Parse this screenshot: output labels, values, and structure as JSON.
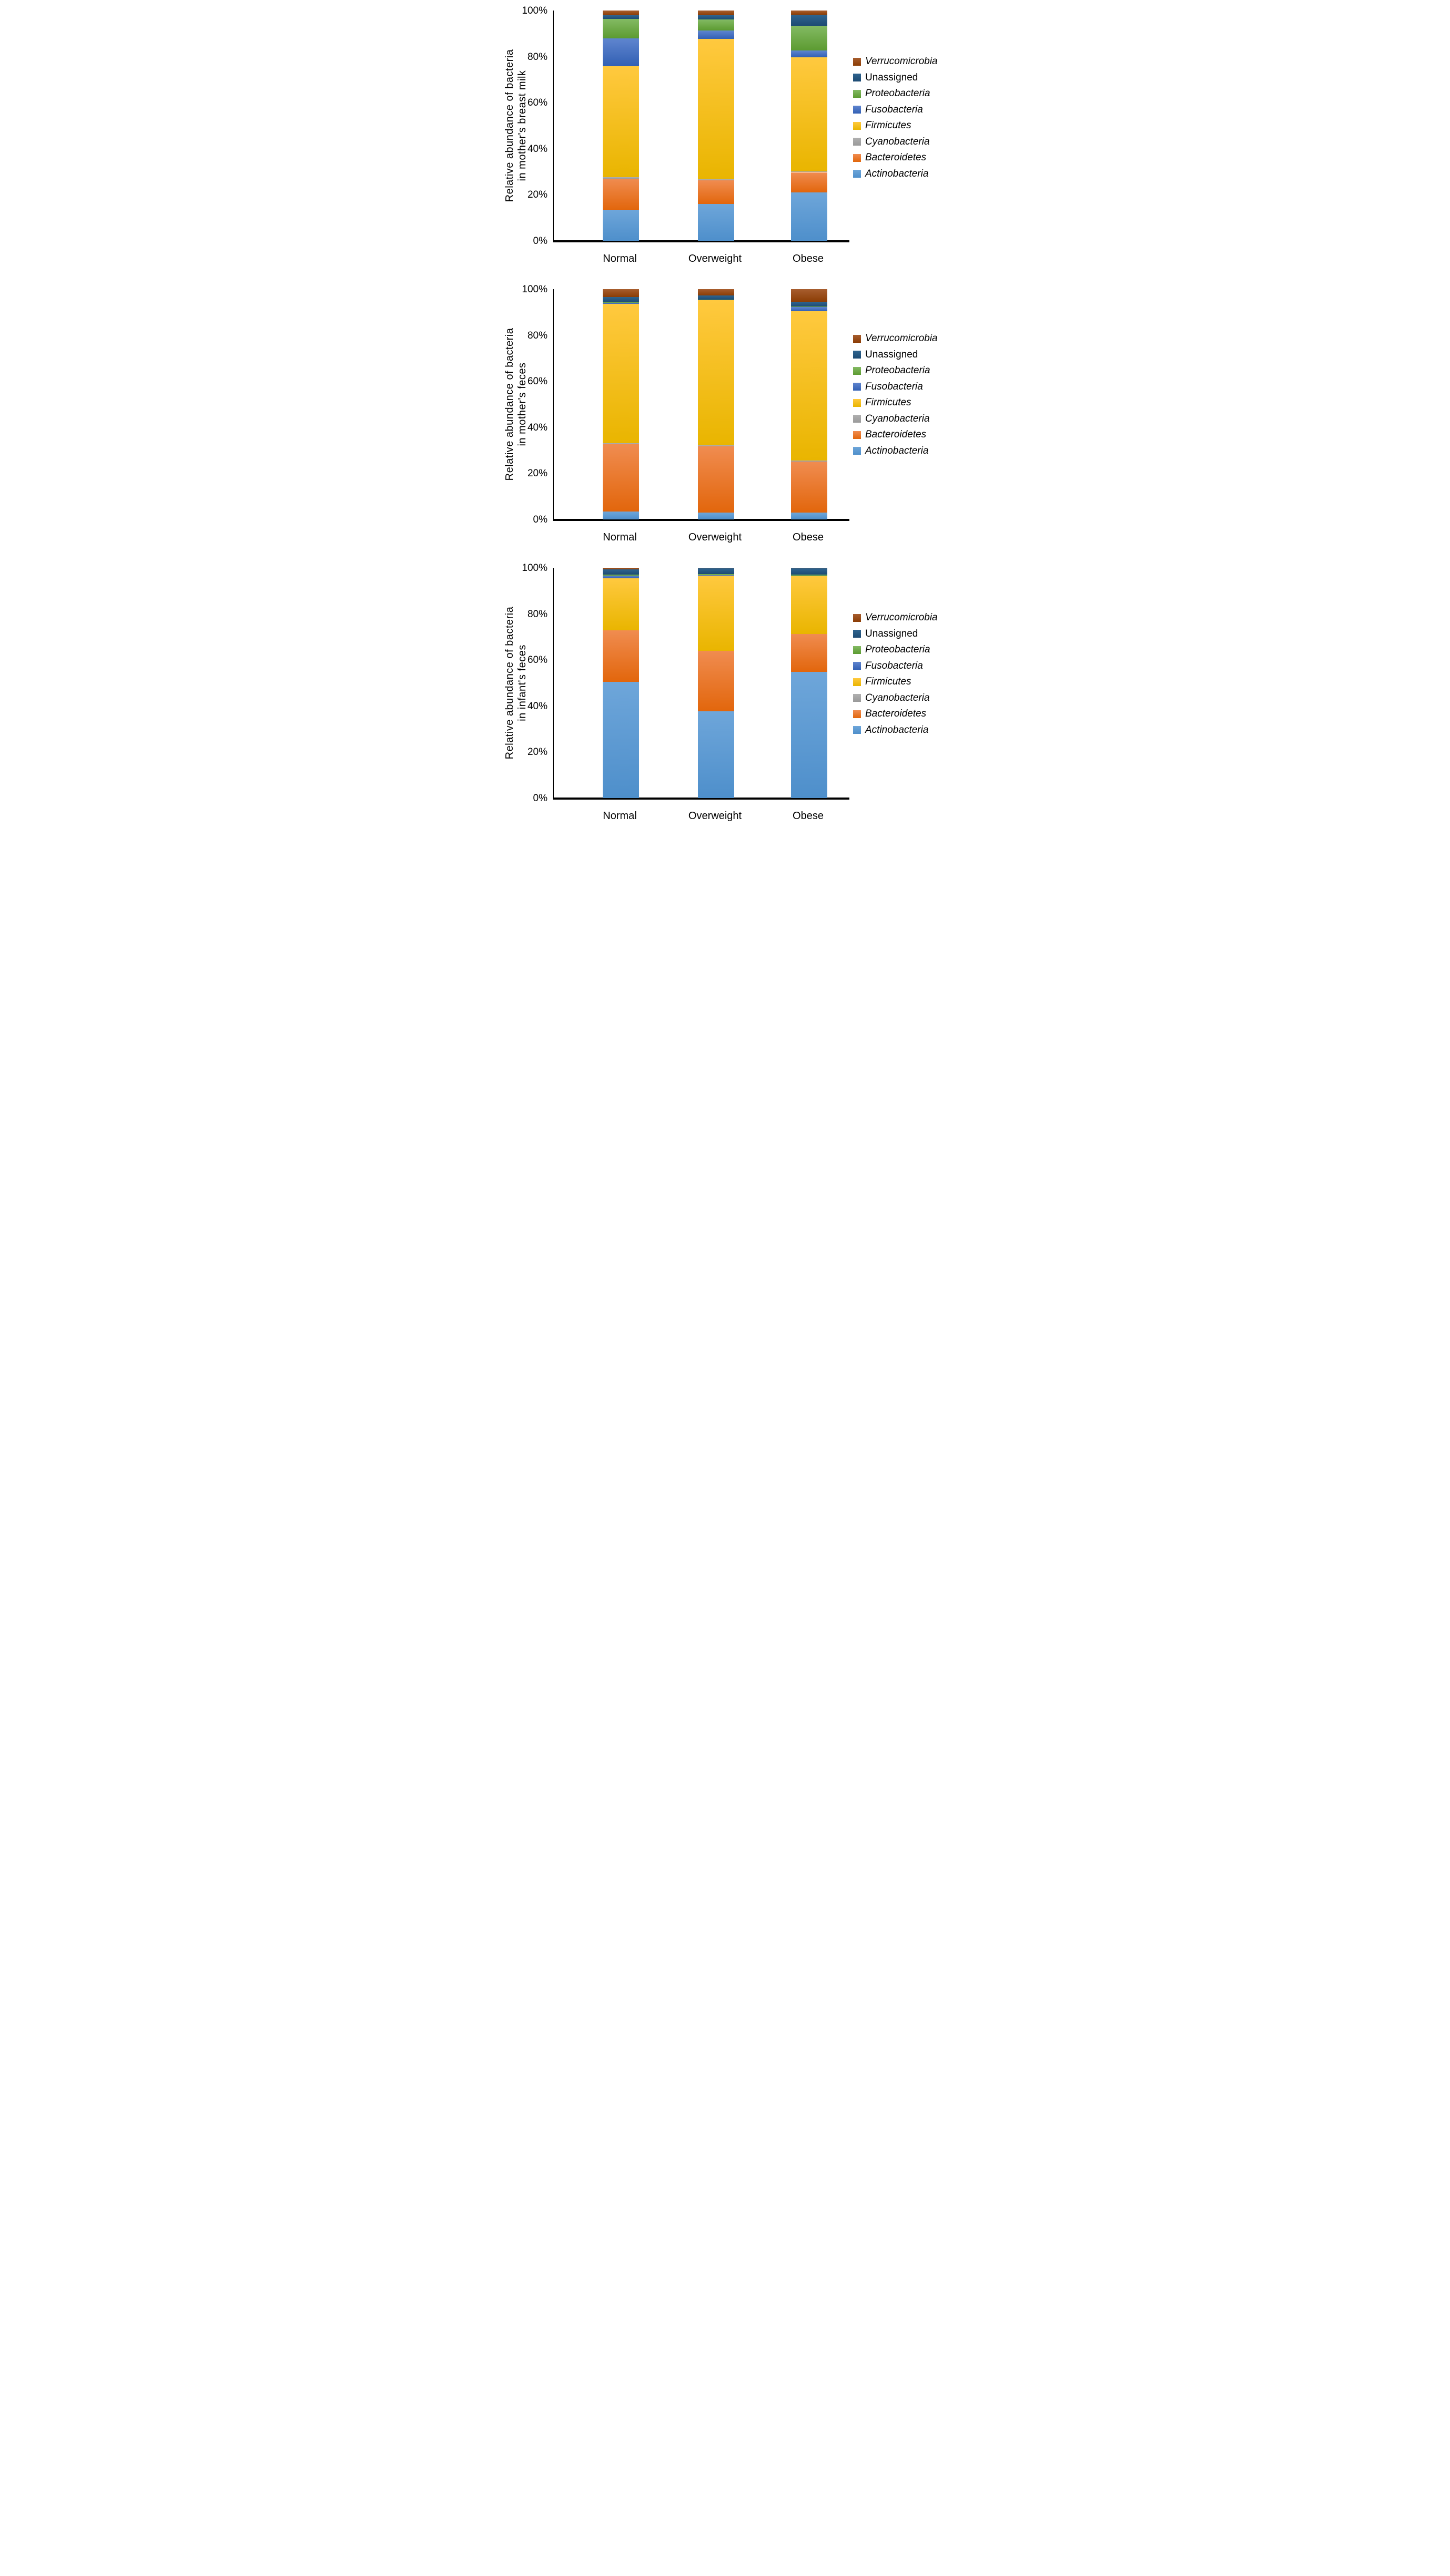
{
  "page": {
    "background": "#ffffff"
  },
  "legend": {
    "items": [
      {
        "label": "Verrucomicrobia",
        "series": "Verrucomicrobia",
        "italic": true
      },
      {
        "label": "Unassigned",
        "series": "Unassigned",
        "italic": false
      },
      {
        "label": "Proteobacteria",
        "series": "Proteobacteria",
        "italic": true
      },
      {
        "label": "Fusobacteria",
        "series": "Fusobacteria",
        "italic": true
      },
      {
        "label": "Firmicutes",
        "series": "Firmicutes",
        "italic": true
      },
      {
        "label": "Cyanobacteria",
        "series": "Cyanobacteria",
        "italic": true
      },
      {
        "label": "Bacteroidetes",
        "series": "Bacteroidetes",
        "italic": true
      },
      {
        "label": "Actinobacteria",
        "series": "Actinobacteria",
        "italic": true
      }
    ]
  },
  "series_styles": [
    {
      "name": "Actinobacteria",
      "color_top": "#6EA6DA",
      "color_bottom": "#4E8FCB"
    },
    {
      "name": "Bacteroidetes",
      "color_top": "#F08C50",
      "color_bottom": "#E2660C"
    },
    {
      "name": "Cyanobacteria",
      "color_top": "#B0B0B0",
      "color_bottom": "#9A9A9A"
    },
    {
      "name": "Firmicutes",
      "color_top": "#FFC93F",
      "color_bottom": "#E9B500"
    },
    {
      "name": "Fusobacteria",
      "color_top": "#5F85CF",
      "color_bottom": "#3260B4"
    },
    {
      "name": "Proteobacteria",
      "color_top": "#83BA63",
      "color_bottom": "#5C9B31"
    },
    {
      "name": "Unassigned",
      "color_top": "#2F648F",
      "color_bottom": "#1D4B73"
    },
    {
      "name": "Verrucomicrobia",
      "color_top": "#A75D2E",
      "color_bottom": "#8B3D05"
    }
  ],
  "chart_data": [
    {
      "type": "bar",
      "stacked": true,
      "percent_stacked": true,
      "ylabel": "Relative abundance of bacteria in mother's breast milk",
      "ylabel_lines": [
        "Relative abundance of bacteria",
        "in mother's breast milk"
      ],
      "categories": [
        "Normal",
        "Overweight",
        "Obese"
      ],
      "ylim": [
        0,
        100
      ],
      "grid": false,
      "legend_position": "right",
      "ytick_labels": [
        "0%",
        "20%",
        "40%",
        "60%",
        "80%",
        "100%"
      ],
      "yticks": [
        0,
        20,
        40,
        60,
        80,
        100
      ],
      "series": [
        {
          "name": "Actinobacteria",
          "values": [
            13.5,
            16.0,
            21.0
          ]
        },
        {
          "name": "Bacteroidetes",
          "values": [
            13.5,
            10.2,
            8.8
          ]
        },
        {
          "name": "Cyanobacteria",
          "values": [
            0.6,
            0.5,
            0.4
          ]
        },
        {
          "name": "Firmicutes",
          "values": [
            48.2,
            60.9,
            49.5
          ]
        },
        {
          "name": "Fusobacteria",
          "values": [
            12.0,
            3.7,
            3.0
          ]
        },
        {
          "name": "Proteobacteria",
          "values": [
            8.6,
            4.9,
            10.6
          ]
        },
        {
          "name": "Unassigned",
          "values": [
            1.6,
            1.7,
            4.9
          ]
        },
        {
          "name": "Verrucomicrobia",
          "values": [
            2.0,
            2.1,
            1.8
          ]
        }
      ]
    },
    {
      "type": "bar",
      "stacked": true,
      "percent_stacked": true,
      "ylabel": "Relative abundance of bacteria in mother's feces",
      "ylabel_lines": [
        "Relative abundance of bacteria",
        "in mother's feces"
      ],
      "categories": [
        "Normal",
        "Overweight",
        "Obese"
      ],
      "ylim": [
        0,
        100
      ],
      "grid": false,
      "legend_position": "right",
      "ytick_labels": [
        "0%",
        "20%",
        "40%",
        "60%",
        "80%",
        "100%"
      ],
      "yticks": [
        0,
        20,
        40,
        60,
        80,
        100
      ],
      "series": [
        {
          "name": "Actinobacteria",
          "values": [
            3.4,
            3.0,
            2.9
          ]
        },
        {
          "name": "Bacteroidetes",
          "values": [
            29.3,
            28.7,
            22.2
          ]
        },
        {
          "name": "Cyanobacteria",
          "values": [
            0.5,
            0.4,
            0.4
          ]
        },
        {
          "name": "Firmicutes",
          "values": [
            60.4,
            63.0,
            64.9
          ]
        },
        {
          "name": "Fusobacteria",
          "values": [
            0.4,
            0.1,
            1.8
          ]
        },
        {
          "name": "Proteobacteria",
          "values": [
            0.3,
            0.3,
            0.2
          ]
        },
        {
          "name": "Unassigned",
          "values": [
            2.3,
            1.8,
            2.2
          ]
        },
        {
          "name": "Verrucomicrobia",
          "values": [
            3.4,
            2.7,
            5.4
          ]
        }
      ]
    },
    {
      "type": "bar",
      "stacked": true,
      "percent_stacked": true,
      "ylabel": "Relative abundance of bacteria in infant's feces",
      "ylabel_lines": [
        "Relative abundance of bacteria",
        "in infant's feces"
      ],
      "categories": [
        "Normal",
        "Overweight",
        "Obese"
      ],
      "ylim": [
        0,
        100
      ],
      "grid": false,
      "legend_position": "right",
      "ytick_labels": [
        "0%",
        "20%",
        "40%",
        "60%",
        "80%",
        "100%"
      ],
      "yticks": [
        0,
        20,
        40,
        60,
        80,
        100
      ],
      "series": [
        {
          "name": "Actinobacteria",
          "values": [
            50.5,
            37.6,
            54.9
          ]
        },
        {
          "name": "Bacteroidetes",
          "values": [
            22.4,
            26.4,
            16.3
          ]
        },
        {
          "name": "Cyanobacteria",
          "values": [
            0.0,
            0.0,
            0.0
          ]
        },
        {
          "name": "Firmicutes",
          "values": [
            22.5,
            32.6,
            25.1
          ]
        },
        {
          "name": "Fusobacteria",
          "values": [
            1.1,
            0.25,
            0.25
          ]
        },
        {
          "name": "Proteobacteria",
          "values": [
            0.5,
            0.5,
            0.55
          ]
        },
        {
          "name": "Unassigned",
          "values": [
            2.3,
            2.4,
            2.6
          ]
        },
        {
          "name": "Verrucomicrobia",
          "values": [
            0.7,
            0.25,
            0.3
          ]
        }
      ]
    }
  ]
}
